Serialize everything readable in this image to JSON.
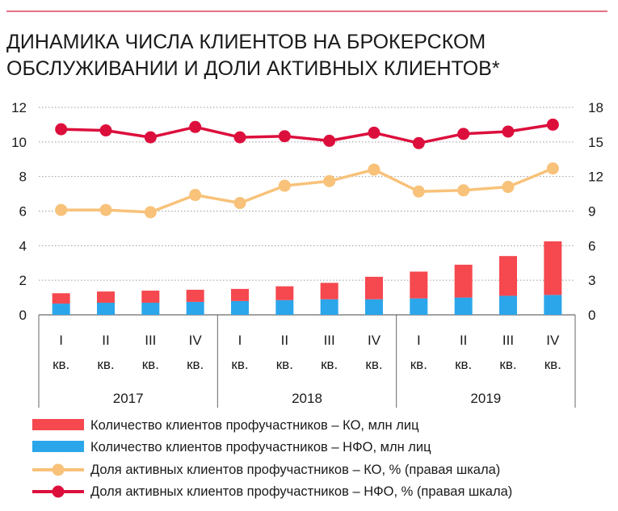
{
  "title_lines": [
    "ДИНАМИКА ЧИСЛА КЛИЕНТОВ НА БРОКЕРСКОМ",
    "ОБСЛУЖИВАНИИ И ДОЛИ АКТИВНЫХ КЛИЕНТОВ*"
  ],
  "colors": {
    "ko_bar": "#f5484f",
    "nfo_bar": "#2ba6ea",
    "ko_line": "#f8c27a",
    "nfo_line": "#dc0f3c",
    "grid": "#9a9a9a",
    "rule": "#d61f3f"
  },
  "chart_data": {
    "type": "bar",
    "categories": [
      {
        "quarter": "I",
        "suffix": "кв."
      },
      {
        "quarter": "II",
        "suffix": "кв."
      },
      {
        "quarter": "III",
        "suffix": "кв."
      },
      {
        "quarter": "IV",
        "suffix": "кв."
      },
      {
        "quarter": "I",
        "suffix": "кв."
      },
      {
        "quarter": "II",
        "suffix": "кв."
      },
      {
        "quarter": "III",
        "suffix": "кв."
      },
      {
        "quarter": "IV",
        "suffix": "кв."
      },
      {
        "quarter": "I",
        "suffix": "кв."
      },
      {
        "quarter": "II",
        "suffix": "кв."
      },
      {
        "quarter": "III",
        "suffix": "кв."
      },
      {
        "quarter": "IV",
        "suffix": "кв."
      }
    ],
    "years": [
      {
        "label": "2017",
        "span": 4
      },
      {
        "label": "2018",
        "span": 4
      },
      {
        "label": "2019",
        "span": 4
      }
    ],
    "left_axis": {
      "min": 0,
      "max": 12,
      "ticks": [
        "0",
        "2",
        "4",
        "6",
        "8",
        "10",
        "12"
      ]
    },
    "right_axis": {
      "min": 0,
      "max": 18,
      "ticks": [
        "0",
        "3",
        "6",
        "9",
        "12",
        "15",
        "18"
      ]
    },
    "grid": true,
    "legend_position": "bottom-left",
    "series": [
      {
        "name": "Количество клиентов профучастников – КО, млн лиц",
        "kind": "stacked-bar-top",
        "axis": "left",
        "values": [
          0.6,
          0.65,
          0.7,
          0.7,
          0.7,
          0.8,
          0.95,
          1.3,
          1.55,
          1.9,
          2.3,
          3.1
        ]
      },
      {
        "name": "Количество клиентов профучастников – НФО, млн лиц",
        "kind": "stacked-bar-base",
        "axis": "left",
        "values": [
          0.65,
          0.7,
          0.7,
          0.75,
          0.8,
          0.85,
          0.9,
          0.9,
          0.95,
          1.0,
          1.1,
          1.15
        ]
      },
      {
        "name": "Доля активных клиентов профучастников – КО, % (правая шкала)",
        "kind": "line",
        "axis": "right",
        "values": [
          9.1,
          9.1,
          8.9,
          10.4,
          9.7,
          11.2,
          11.6,
          12.6,
          10.7,
          10.8,
          11.1,
          12.7
        ]
      },
      {
        "name": "Доля активных клиентов профучастников – НФО, % (правая шкала)",
        "kind": "line",
        "axis": "right",
        "values": [
          16.1,
          16.0,
          15.4,
          16.3,
          15.4,
          15.5,
          15.1,
          15.8,
          14.9,
          15.7,
          15.9,
          16.5
        ]
      }
    ]
  }
}
